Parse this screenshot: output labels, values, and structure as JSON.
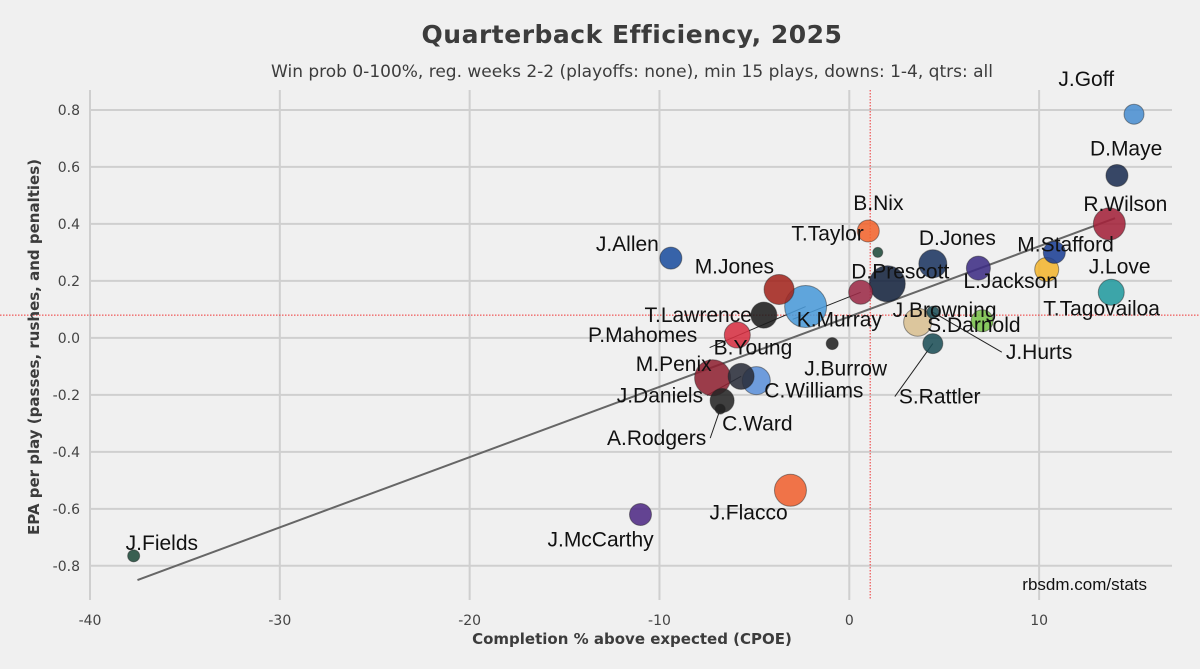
{
  "chart_data": {
    "type": "scatter",
    "title": "Quarterback Efficiency, 2025",
    "subtitle": "Win prob 0-100%, reg. weeks 2-2 (playoffs: none), min 15 plays, downs: 1-4, qtrs: all",
    "xlabel": "Completion % above expected (CPOE)",
    "ylabel": "EPA per play (passes, rushes, and penalties)",
    "credit": "rbsdm.com/stats",
    "xlim": [
      -40,
      17
    ],
    "ylim": [
      -0.92,
      0.87
    ],
    "xticks": [
      -40,
      -30,
      -20,
      -10,
      0,
      10
    ],
    "xtick_labels": [
      "-40",
      "-30",
      "-20",
      "-10",
      "0",
      "10"
    ],
    "yticks": [
      -0.8,
      -0.6,
      -0.4,
      -0.2,
      0.0,
      0.2,
      0.4,
      0.6,
      0.8
    ],
    "ytick_labels": [
      "-0.8",
      "-0.6",
      "-0.4",
      "-0.2",
      "0.0",
      "0.2",
      "0.4",
      "0.6",
      "0.8"
    ],
    "mean_x": 1.1,
    "mean_y": 0.08,
    "trendline": {
      "x": [
        -37.5,
        14.0
      ],
      "y": [
        -0.85,
        0.42
      ]
    },
    "points": [
      {
        "name": "J.Goff",
        "x": 15.0,
        "y": 0.785,
        "size": 10,
        "color": "#4a8ed0"
      },
      {
        "name": "D.Maye",
        "x": 14.1,
        "y": 0.57,
        "size": 11,
        "color": "#1d2f52"
      },
      {
        "name": "R.Wilson",
        "x": 13.7,
        "y": 0.4,
        "size": 16,
        "color": "#a3223a"
      },
      {
        "name": "M.Stafford",
        "x": 10.8,
        "y": 0.3,
        "size": 11,
        "color": "#1b3f94"
      },
      {
        "name": "J.Love",
        "x": 10.4,
        "y": 0.24,
        "size": 12,
        "color": "#f3b530"
      },
      {
        "name": "T.Tagovailoa",
        "x": 13.8,
        "y": 0.16,
        "size": 13,
        "color": "#229a9e"
      },
      {
        "name": "L.Jackson",
        "x": 6.8,
        "y": 0.245,
        "size": 12,
        "color": "#3e2d84"
      },
      {
        "name": "D.Jones",
        "x": 4.4,
        "y": 0.26,
        "size": 14,
        "color": "#1d3561"
      },
      {
        "name": "D.Prescott",
        "x": 2.0,
        "y": 0.19,
        "size": 18,
        "color": "#14233d"
      },
      {
        "name": "B.Nix",
        "x": 1.0,
        "y": 0.375,
        "size": 11,
        "color": "#f1642e"
      },
      {
        "name": "T.Taylor",
        "x": 1.5,
        "y": 0.3,
        "size": 5,
        "color": "#1f4a3a"
      },
      {
        "name": "J.Browning",
        "x": 3.6,
        "y": 0.055,
        "size": 14,
        "color": "#d8bf91"
      },
      {
        "name": "S.Darnold",
        "x": 7.0,
        "y": 0.06,
        "size": 11,
        "color": "#79c24a"
      },
      {
        "name": "J.Hurts",
        "x": 4.4,
        "y": 0.09,
        "size": 6,
        "color": "#1c4f56"
      },
      {
        "name": "S.Rattler",
        "x": 4.4,
        "y": -0.02,
        "size": 10,
        "color": "#1c4f56"
      },
      {
        "name": "J.Burrow",
        "x": -0.9,
        "y": -0.02,
        "size": 6,
        "color": "#222222"
      },
      {
        "name": "K.Murray",
        "x": 0.6,
        "y": 0.16,
        "size": 12,
        "color": "#9b2a47"
      },
      {
        "name": "B.Young",
        "x": -2.3,
        "y": 0.11,
        "size": 21,
        "color": "#4a9ad8"
      },
      {
        "name": "M.Jones",
        "x": -3.7,
        "y": 0.17,
        "size": 15,
        "color": "#a3261e"
      },
      {
        "name": "T.Lawrence",
        "x": -4.5,
        "y": 0.08,
        "size": 13,
        "color": "#1c1c1c"
      },
      {
        "name": "J.Allen",
        "x": -9.4,
        "y": 0.28,
        "size": 11,
        "color": "#1d4f9e"
      },
      {
        "name": "P.Mahomes",
        "x": -5.9,
        "y": 0.01,
        "size": 13,
        "color": "#d63042"
      },
      {
        "name": "M.Penix",
        "x": -7.2,
        "y": -0.14,
        "size": 18,
        "color": "#8e2232"
      },
      {
        "name": "J.Daniels",
        "x": -5.7,
        "y": -0.135,
        "size": 13,
        "color": "#2a2e3a"
      },
      {
        "name": "C.Williams",
        "x": -4.9,
        "y": -0.15,
        "size": 14,
        "color": "#5b8fd8"
      },
      {
        "name": "C.Ward",
        "x": -6.7,
        "y": -0.22,
        "size": 12,
        "color": "#262626"
      },
      {
        "name": "A.Rodgers",
        "x": -6.8,
        "y": -0.25,
        "size": 5,
        "color": "#222222"
      },
      {
        "name": "J.Flacco",
        "x": -3.1,
        "y": -0.535,
        "size": 16,
        "color": "#ef6130"
      },
      {
        "name": "J.McCarthy",
        "x": -11.0,
        "y": -0.62,
        "size": 11,
        "color": "#4e2a84"
      },
      {
        "name": "J.Fields",
        "x": -37.7,
        "y": -0.765,
        "size": 6,
        "color": "#1f4a3a"
      }
    ]
  }
}
